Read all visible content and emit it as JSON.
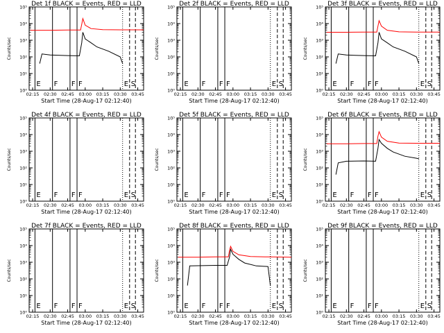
{
  "figure": {
    "x_tick_labels": [
      "02:15",
      "02:30",
      "02:45",
      "03:00",
      "03:15",
      "03:30",
      "03:45"
    ],
    "y_tick_labels": [
      "10⁰",
      "10¹",
      "10²",
      "10³",
      "10⁴",
      "10⁵"
    ],
    "colors": {
      "events": "#000000",
      "lld": "#ff0000",
      "frame": "#000000",
      "background": "#ffffff"
    }
  },
  "chart_data": [
    {
      "type": "line",
      "title": "Det 1f BLACK = Events, RED = LLD",
      "xlabel": "Start Time (28-Aug-17 02:12:40)",
      "ylabel": "Counts/sec",
      "xlim": [
        "02:12",
        "03:50"
      ],
      "ylim": [
        1,
        100000
      ],
      "yscale": "log",
      "markers": [
        {
          "label": "E",
          "time": "02:17",
          "style": "solid"
        },
        {
          "label": "F",
          "time": "02:32",
          "style": "solid"
        },
        {
          "label": "F",
          "time": "02:47",
          "style": "solid"
        },
        {
          "label": "F",
          "time": "02:53",
          "style": "solid"
        },
        {
          "label": "E",
          "time": "03:32",
          "style": "dotted"
        },
        {
          "label": "S",
          "time": "03:38",
          "style": "dashed"
        },
        {
          "label": "",
          "time": "03:43",
          "style": "dashed"
        }
      ],
      "series": [
        {
          "name": "BLACK = Events",
          "color": "#000000",
          "x": [
            "02:21",
            "02:23",
            "02:30",
            "02:45",
            "02:55",
            "02:57",
            "02:58",
            "03:00",
            "03:05",
            "03:10",
            "03:20",
            "03:30",
            "03:32"
          ],
          "y": [
            40,
            150,
            130,
            120,
            115,
            700,
            3000,
            1200,
            700,
            400,
            220,
            100,
            40
          ]
        },
        {
          "name": "RED = LLD",
          "color": "#ff0000",
          "x": [
            "02:13",
            "02:30",
            "02:45",
            "02:56",
            "02:57",
            "02:58",
            "03:00",
            "03:05",
            "03:15",
            "03:30",
            "03:50"
          ],
          "y": [
            4000,
            4000,
            4100,
            4100,
            9000,
            20000,
            8000,
            5000,
            4300,
            4200,
            4200
          ]
        }
      ]
    },
    {
      "type": "line",
      "title": "Det 2f BLACK = Events, RED = LLD",
      "xlabel": "Start Time (28-Aug-17 02:12:40)",
      "ylabel": "Counts/sec",
      "xlim": [
        "02:12",
        "03:50"
      ],
      "ylim": [
        1,
        100000
      ],
      "yscale": "log",
      "markers": [
        {
          "label": "E",
          "time": "02:17",
          "style": "solid"
        },
        {
          "label": "F",
          "time": "02:32",
          "style": "solid"
        },
        {
          "label": "F",
          "time": "02:47",
          "style": "solid"
        },
        {
          "label": "F",
          "time": "02:53",
          "style": "solid"
        },
        {
          "label": "E",
          "time": "03:32",
          "style": "dotted"
        },
        {
          "label": "S",
          "time": "03:38",
          "style": "dashed"
        },
        {
          "label": "",
          "time": "03:43",
          "style": "dashed"
        }
      ],
      "series": []
    },
    {
      "type": "line",
      "title": "Det 3f BLACK = Events, RED = LLD",
      "xlabel": "Start Time (28-Aug-17 02:12:40)",
      "ylabel": "Counts/sec",
      "xlim": [
        "02:12",
        "03:50"
      ],
      "ylim": [
        1,
        100000
      ],
      "yscale": "log",
      "markers": [
        {
          "label": "E",
          "time": "02:17",
          "style": "solid"
        },
        {
          "label": "F",
          "time": "02:32",
          "style": "solid"
        },
        {
          "label": "F",
          "time": "02:47",
          "style": "solid"
        },
        {
          "label": "F",
          "time": "02:53",
          "style": "solid"
        },
        {
          "label": "E",
          "time": "03:32",
          "style": "dotted"
        },
        {
          "label": "S",
          "time": "03:38",
          "style": "dashed"
        },
        {
          "label": "",
          "time": "03:43",
          "style": "dashed"
        }
      ],
      "series": [
        {
          "name": "BLACK = Events",
          "color": "#000000",
          "x": [
            "02:21",
            "02:23",
            "02:30",
            "02:45",
            "02:55",
            "02:57",
            "02:58",
            "03:00",
            "03:05",
            "03:10",
            "03:20",
            "03:30",
            "03:32"
          ],
          "y": [
            40,
            150,
            130,
            120,
            115,
            700,
            3000,
            1200,
            700,
            400,
            220,
            100,
            40
          ]
        },
        {
          "name": "RED = LLD",
          "color": "#ff0000",
          "x": [
            "02:13",
            "02:30",
            "02:45",
            "02:56",
            "02:57",
            "02:58",
            "03:00",
            "03:05",
            "03:15",
            "03:30",
            "03:50"
          ],
          "y": [
            3000,
            3000,
            3100,
            3100,
            7000,
            15000,
            7000,
            4000,
            3200,
            3100,
            3100
          ]
        }
      ]
    },
    {
      "type": "line",
      "title": "Det 4f BLACK = Events, RED = LLD",
      "xlabel": "Start Time (28-Aug-17 02:12:40)",
      "ylabel": "Counts/sec",
      "xlim": [
        "02:12",
        "03:50"
      ],
      "ylim": [
        1,
        100000
      ],
      "yscale": "log",
      "markers": [
        {
          "label": "E",
          "time": "02:17",
          "style": "solid"
        },
        {
          "label": "F",
          "time": "02:32",
          "style": "solid"
        },
        {
          "label": "F",
          "time": "02:47",
          "style": "solid"
        },
        {
          "label": "F",
          "time": "02:53",
          "style": "solid"
        },
        {
          "label": "E",
          "time": "03:32",
          "style": "dotted"
        },
        {
          "label": "S",
          "time": "03:38",
          "style": "dashed"
        },
        {
          "label": "",
          "time": "03:43",
          "style": "dashed"
        }
      ],
      "series": []
    },
    {
      "type": "line",
      "title": "Det 5f BLACK = Events, RED = LLD",
      "xlabel": "Start Time (28-Aug-17 02:12:40)",
      "ylabel": "Counts/sec",
      "xlim": [
        "02:12",
        "03:50"
      ],
      "ylim": [
        1,
        100000
      ],
      "yscale": "log",
      "markers": [
        {
          "label": "E",
          "time": "02:17",
          "style": "solid"
        },
        {
          "label": "F",
          "time": "02:32",
          "style": "solid"
        },
        {
          "label": "F",
          "time": "02:47",
          "style": "solid"
        },
        {
          "label": "F",
          "time": "02:53",
          "style": "solid"
        },
        {
          "label": "E",
          "time": "03:32",
          "style": "dotted"
        },
        {
          "label": "S",
          "time": "03:38",
          "style": "dashed"
        },
        {
          "label": "",
          "time": "03:43",
          "style": "dashed"
        }
      ],
      "series": []
    },
    {
      "type": "line",
      "title": "Det 6f BLACK = Events, RED = LLD",
      "xlabel": "Start Time (28-Aug-17 02:12:40)",
      "ylabel": "Counts/sec",
      "xlim": [
        "02:12",
        "03:50"
      ],
      "ylim": [
        1,
        100000
      ],
      "yscale": "log",
      "markers": [
        {
          "label": "E",
          "time": "02:17",
          "style": "solid"
        },
        {
          "label": "F",
          "time": "02:32",
          "style": "solid"
        },
        {
          "label": "F",
          "time": "02:47",
          "style": "solid"
        },
        {
          "label": "F",
          "time": "02:53",
          "style": "solid"
        },
        {
          "label": "E",
          "time": "03:32",
          "style": "dotted"
        },
        {
          "label": "S",
          "time": "03:38",
          "style": "dashed"
        },
        {
          "label": "",
          "time": "03:43",
          "style": "dashed"
        }
      ],
      "series": [
        {
          "name": "BLACK = Events",
          "color": "#000000",
          "x": [
            "02:21",
            "02:23",
            "02:30",
            "02:45",
            "02:55",
            "02:57",
            "02:58",
            "03:00",
            "03:05",
            "03:10",
            "03:20",
            "03:30",
            "03:32"
          ],
          "y": [
            40,
            200,
            250,
            260,
            250,
            1500,
            5000,
            3000,
            1500,
            900,
            500,
            380,
            350
          ]
        },
        {
          "name": "RED = LLD",
          "color": "#ff0000",
          "x": [
            "02:13",
            "02:30",
            "02:45",
            "02:56",
            "02:57",
            "02:58",
            "03:00",
            "03:05",
            "03:15",
            "03:30",
            "03:50"
          ],
          "y": [
            2800,
            2800,
            2900,
            2900,
            8000,
            15000,
            7000,
            4000,
            3100,
            3000,
            3000
          ]
        }
      ]
    },
    {
      "type": "line",
      "title": "Det 7f BLACK = Events, RED = LLD",
      "xlabel": "Start Time (28-Aug-17 02:12:40)",
      "ylabel": "Counts/sec",
      "xlim": [
        "02:12",
        "03:50"
      ],
      "ylim": [
        1,
        100000
      ],
      "yscale": "log",
      "markers": [
        {
          "label": "E",
          "time": "02:17",
          "style": "solid"
        },
        {
          "label": "F",
          "time": "02:32",
          "style": "solid"
        },
        {
          "label": "F",
          "time": "02:47",
          "style": "solid"
        },
        {
          "label": "F",
          "time": "02:53",
          "style": "solid"
        },
        {
          "label": "E",
          "time": "03:32",
          "style": "dotted"
        },
        {
          "label": "S",
          "time": "03:38",
          "style": "dashed"
        },
        {
          "label": "",
          "time": "03:43",
          "style": "dashed"
        }
      ],
      "series": []
    },
    {
      "type": "line",
      "title": "Det 8f BLACK = Events, RED = LLD",
      "xlabel": "Start Time (28-Aug-17 02:12:40)",
      "ylabel": "Counts/sec",
      "xlim": [
        "02:12",
        "03:50"
      ],
      "ylim": [
        1,
        100000
      ],
      "yscale": "log",
      "markers": [
        {
          "label": "E",
          "time": "02:17",
          "style": "solid"
        },
        {
          "label": "F",
          "time": "02:32",
          "style": "solid"
        },
        {
          "label": "F",
          "time": "02:47",
          "style": "solid"
        },
        {
          "label": "F",
          "time": "02:53",
          "style": "solid"
        },
        {
          "label": "E",
          "time": "03:32",
          "style": "dotted"
        },
        {
          "label": "S",
          "time": "03:38",
          "style": "dashed"
        },
        {
          "label": "",
          "time": "03:43",
          "style": "dashed"
        }
      ],
      "series": [
        {
          "name": "BLACK = Events",
          "color": "#000000",
          "x": [
            "02:21",
            "02:23",
            "02:30",
            "02:45",
            "02:55",
            "02:57",
            "02:58",
            "03:00",
            "03:05",
            "03:10",
            "03:20",
            "03:30",
            "03:32"
          ],
          "y": [
            40,
            600,
            620,
            650,
            650,
            2000,
            6000,
            3000,
            1500,
            900,
            600,
            550,
            40
          ]
        },
        {
          "name": "RED = LLD",
          "color": "#ff0000",
          "x": [
            "02:13",
            "02:30",
            "02:45",
            "02:56",
            "02:57",
            "02:58",
            "03:00",
            "03:05",
            "03:15",
            "03:30",
            "03:50"
          ],
          "y": [
            2000,
            2000,
            2100,
            2100,
            5000,
            9000,
            4500,
            2800,
            2200,
            2100,
            2000
          ]
        }
      ]
    },
    {
      "type": "line",
      "title": "Det 9f BLACK = Events, RED = LLD",
      "xlabel": "Start Time (28-Aug-17 02:12:40)",
      "ylabel": "Counts/sec",
      "xlim": [
        "02:12",
        "03:50"
      ],
      "ylim": [
        1,
        100000
      ],
      "yscale": "log",
      "markers": [
        {
          "label": "E",
          "time": "02:17",
          "style": "solid"
        },
        {
          "label": "F",
          "time": "02:32",
          "style": "solid"
        },
        {
          "label": "F",
          "time": "02:47",
          "style": "solid"
        },
        {
          "label": "F",
          "time": "02:53",
          "style": "solid"
        },
        {
          "label": "E",
          "time": "03:32",
          "style": "dotted"
        },
        {
          "label": "S",
          "time": "03:38",
          "style": "dashed"
        },
        {
          "label": "",
          "time": "03:43",
          "style": "dashed"
        }
      ],
      "series": []
    }
  ]
}
